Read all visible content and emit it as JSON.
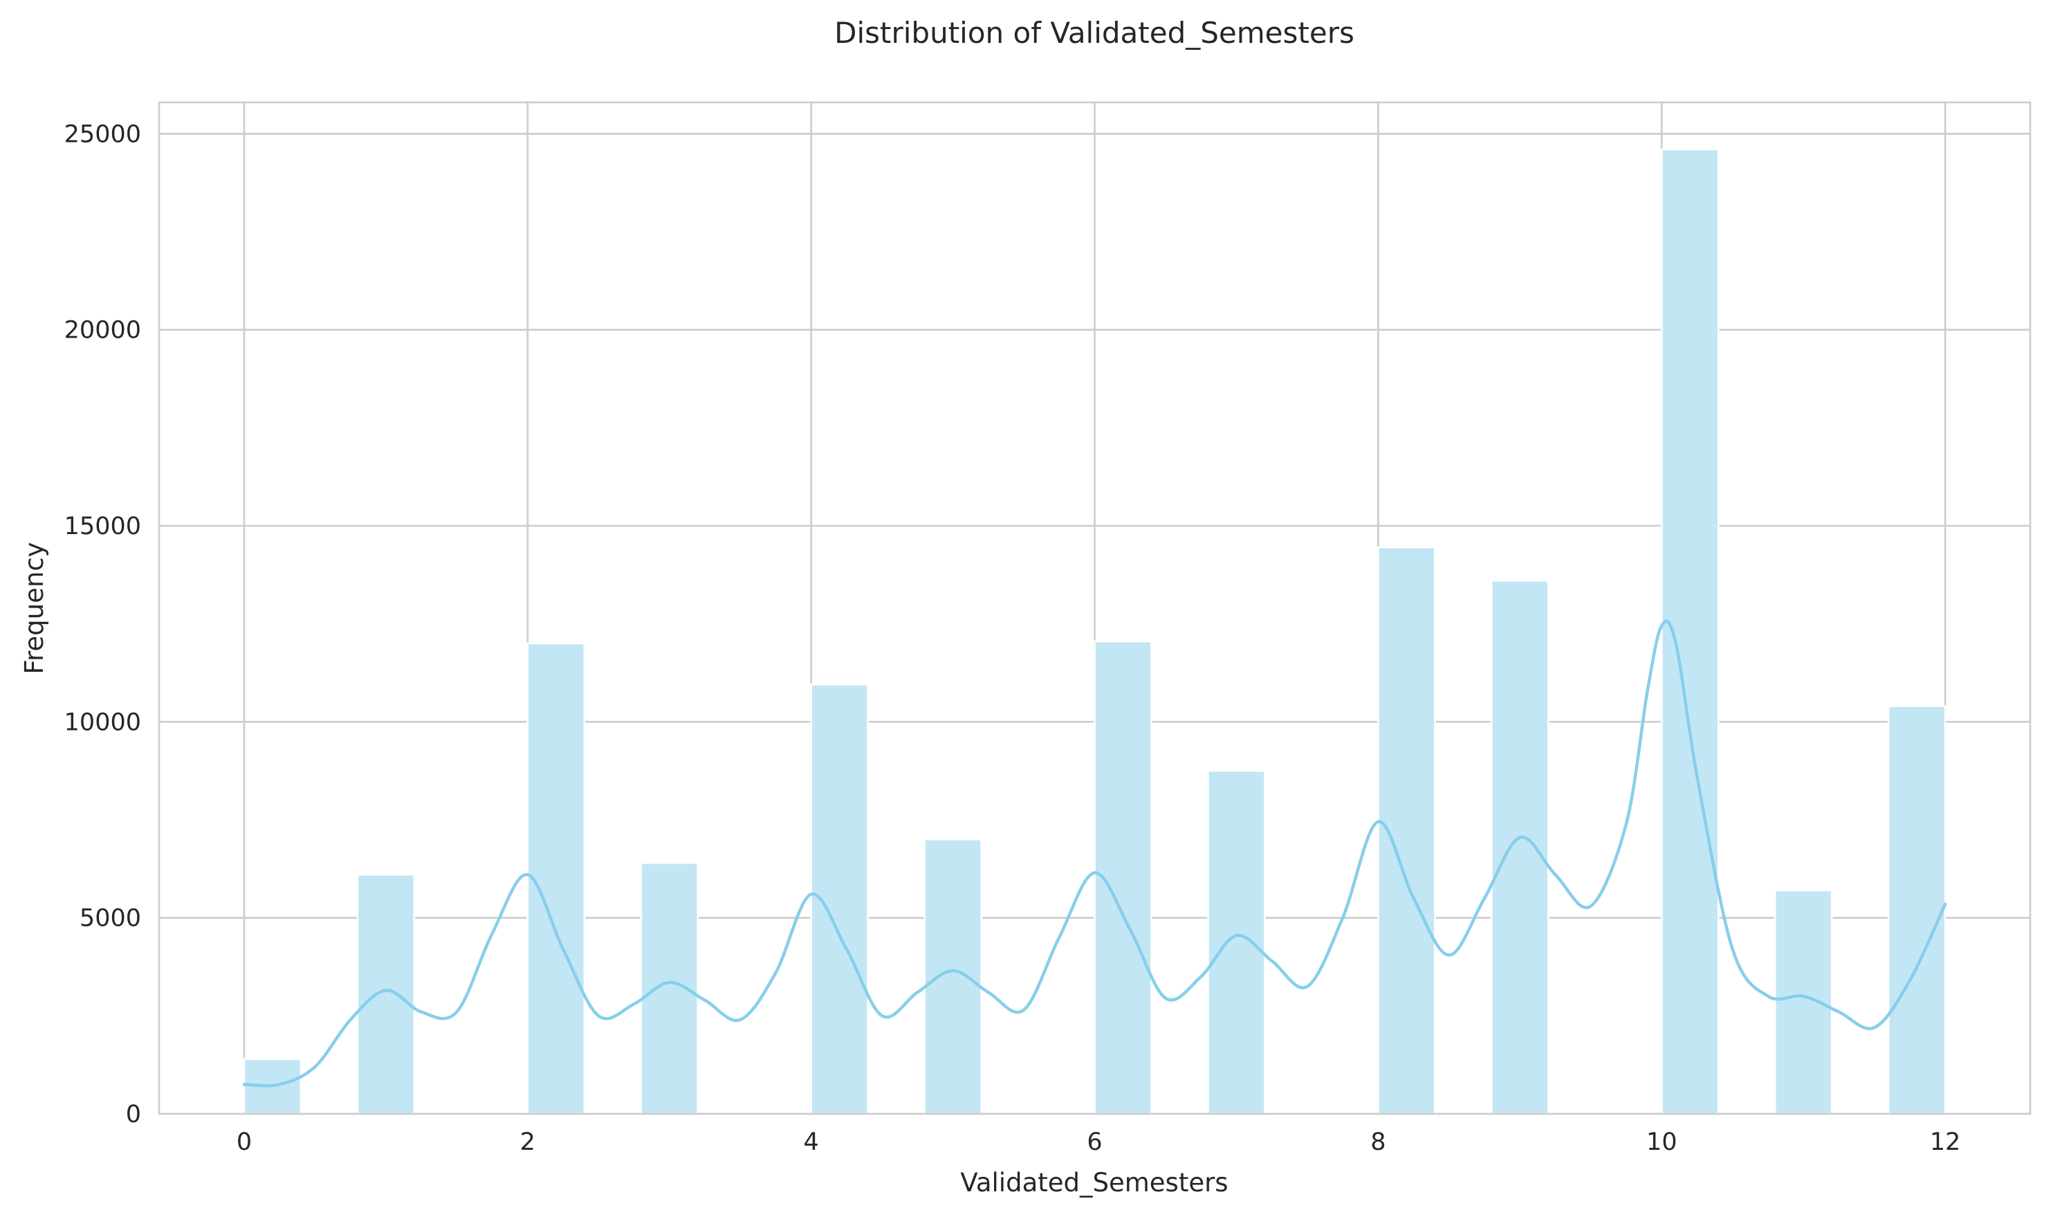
{
  "chart_data": {
    "type": "histogram",
    "title": "Distribution of Validated_Semesters",
    "xlabel": "Validated_Semesters",
    "ylabel": "Frequency",
    "xlim": [
      -0.6,
      12.6
    ],
    "ylim": [
      0,
      25800
    ],
    "x_ticks": [
      0,
      2,
      4,
      6,
      8,
      10,
      12
    ],
    "y_ticks": [
      0,
      5000,
      10000,
      15000,
      20000,
      25000
    ],
    "grid": true,
    "bin_width": 0.4,
    "bars": [
      {
        "x_start": 0.0,
        "x_end": 0.4,
        "value": 1400
      },
      {
        "x_start": 0.8,
        "x_end": 1.2,
        "value": 6100
      },
      {
        "x_start": 2.0,
        "x_end": 2.4,
        "value": 12000
      },
      {
        "x_start": 2.8,
        "x_end": 3.2,
        "value": 6400
      },
      {
        "x_start": 4.0,
        "x_end": 4.4,
        "value": 10950
      },
      {
        "x_start": 4.8,
        "x_end": 5.2,
        "value": 7000
      },
      {
        "x_start": 6.0,
        "x_end": 6.4,
        "value": 12050
      },
      {
        "x_start": 6.8,
        "x_end": 7.2,
        "value": 8750
      },
      {
        "x_start": 8.0,
        "x_end": 8.4,
        "value": 14450
      },
      {
        "x_start": 8.8,
        "x_end": 9.2,
        "value": 13600
      },
      {
        "x_start": 10.0,
        "x_end": 10.4,
        "value": 24600
      },
      {
        "x_start": 10.8,
        "x_end": 11.2,
        "value": 5700
      },
      {
        "x_start": 11.6,
        "x_end": 12.0,
        "value": 10400
      }
    ],
    "kde": {
      "x": [
        0,
        0.25,
        0.5,
        0.75,
        1,
        1.25,
        1.5,
        1.75,
        2,
        2.25,
        2.5,
        2.75,
        3,
        3.25,
        3.5,
        3.75,
        4,
        4.25,
        4.5,
        4.75,
        5,
        5.25,
        5.5,
        5.75,
        6,
        6.25,
        6.5,
        6.75,
        7,
        7.25,
        7.5,
        7.75,
        8,
        8.25,
        8.5,
        8.75,
        9,
        9.25,
        9.5,
        9.75,
        9.9,
        10,
        10.1,
        10.25,
        10.5,
        10.75,
        11,
        11.25,
        11.5,
        11.75,
        12
      ],
      "y": [
        750,
        750,
        1200,
        2400,
        3150,
        2600,
        2600,
        4600,
        6100,
        4200,
        2500,
        2800,
        3350,
        2900,
        2400,
        3600,
        5600,
        4200,
        2500,
        3100,
        3650,
        3100,
        2650,
        4500,
        6150,
        4700,
        2950,
        3500,
        4550,
        3900,
        3250,
        5000,
        7450,
        5500,
        4050,
        5500,
        7050,
        6100,
        5300,
        7400,
        10800,
        12450,
        12000,
        8600,
        4200,
        3000,
        3000,
        2600,
        2200,
        3400,
        5350
      ]
    },
    "colors": {
      "bar_fill": "#c3e6f4",
      "kde_line": "#87ceeb",
      "grid": "#cccccc"
    }
  }
}
